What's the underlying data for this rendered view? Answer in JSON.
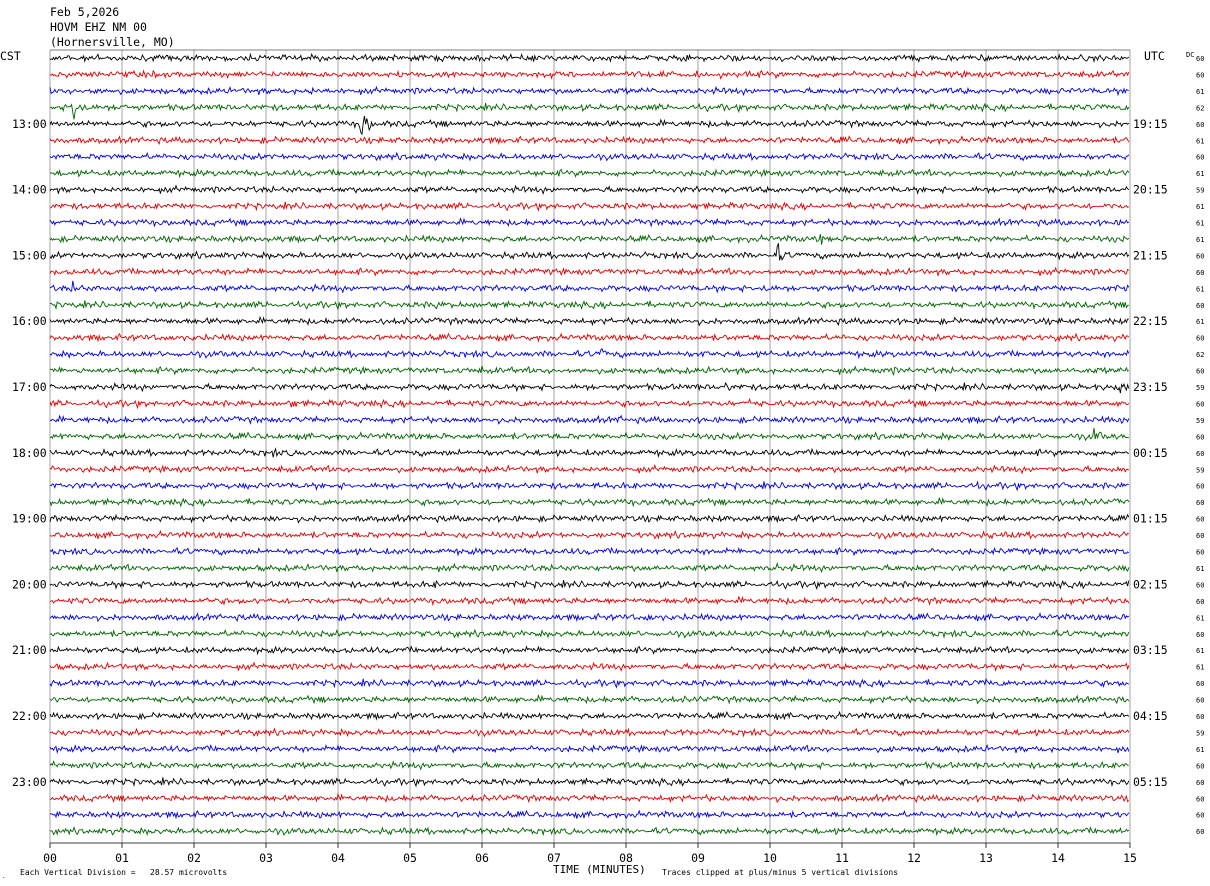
{
  "header": {
    "date": "Feb 5,2026",
    "station": "HOVM EHZ NM 00",
    "location": "(Hornersville, MO)"
  },
  "axis_labels": {
    "left_timezone": "CST",
    "right_timezone": "UTC",
    "dc_header": "DC",
    "x_title": "TIME (MINUTES)"
  },
  "footer": {
    "scale_note": "Each Vertical Division =   28.57 microvolts",
    "clip_note": "Traces clipped at plus/minus 5 vertical divisions"
  },
  "chart_data": {
    "type": "line",
    "x_range_minutes": [
      0,
      15
    ],
    "x_ticks": [
      "00",
      "01",
      "02",
      "03",
      "04",
      "05",
      "06",
      "07",
      "08",
      "09",
      "10",
      "11",
      "12",
      "13",
      "14",
      "15"
    ],
    "grid": "vertical lines every minute",
    "trace_colors": [
      "#000000",
      "#e00000",
      "#0000e0",
      "#006400"
    ],
    "left_hour_labels": [
      "13:00",
      "14:00",
      "15:00",
      "16:00",
      "17:00",
      "18:00",
      "19:00",
      "20:00",
      "21:00",
      "22:00",
      "23:00"
    ],
    "right_hour_labels": [
      "19:15",
      "20:15",
      "21:15",
      "22:15",
      "23:15",
      "00:15",
      "01:15",
      "02:15",
      "03:15",
      "04:15",
      "05:15"
    ],
    "first_hour_label_row": 4,
    "dc_values": [
      "60",
      "60",
      "61",
      "62",
      "60",
      "61",
      "60",
      "61",
      "59",
      "61",
      "61",
      "61",
      "60",
      "60",
      "61",
      "60",
      "61",
      "60",
      "62",
      "60",
      "59",
      "60",
      "59",
      "60",
      "60",
      "59",
      "60",
      "60",
      "60",
      "60",
      "60",
      "61",
      "60",
      "60",
      "61",
      "60",
      "61",
      "61",
      "60",
      "60",
      "60",
      "59",
      "61",
      "60",
      "60",
      "60",
      "60",
      "60"
    ],
    "row_count": 48,
    "base_amplitude_divisions": 0.9,
    "events": [
      {
        "row": 2,
        "minute": 0.6,
        "amp": 2.5
      },
      {
        "row": 2,
        "minute": 3.6,
        "amp": 2.0
      },
      {
        "row": 1,
        "minute": 10.9,
        "amp": 1.2
      },
      {
        "row": 3,
        "minute": 0.33,
        "amp": 7.0
      },
      {
        "row": 3,
        "minute": 1.0,
        "amp": 2.5
      },
      {
        "row": 4,
        "minute": 4.33,
        "amp": 5.0
      },
      {
        "row": 11,
        "minute": 10.7,
        "amp": 2.0
      },
      {
        "row": 12,
        "minute": 10.1,
        "amp": 3.5
      },
      {
        "row": 14,
        "minute": 0.33,
        "amp": 3.0
      },
      {
        "row": 14,
        "minute": 9.9,
        "amp": 2.5
      },
      {
        "row": 15,
        "minute": 5.3,
        "amp": 2.5
      },
      {
        "row": 15,
        "minute": 5.85,
        "amp": 1.5
      },
      {
        "row": 18,
        "minute": 7.65,
        "amp": 2.5
      },
      {
        "row": 18,
        "minute": 9.05,
        "amp": 1.8
      },
      {
        "row": 19,
        "minute": 6.0,
        "amp": 1.5
      },
      {
        "row": 19,
        "minute": 11.7,
        "amp": 1.5
      },
      {
        "row": 20,
        "minute": 3.6,
        "amp": 1.5
      },
      {
        "row": 20,
        "minute": 9.4,
        "amp": 2.0
      },
      {
        "row": 20,
        "minute": 11.8,
        "amp": 2.0
      },
      {
        "row": 20,
        "minute": 14.85,
        "amp": 3.0
      },
      {
        "row": 21,
        "minute": 3.35,
        "amp": 2.0
      },
      {
        "row": 21,
        "minute": 9.7,
        "amp": 1.8
      },
      {
        "row": 22,
        "minute": 7.9,
        "amp": 1.6
      },
      {
        "row": 23,
        "minute": 14.5,
        "amp": 3.0
      },
      {
        "row": 24,
        "minute": 3.1,
        "amp": 1.6
      },
      {
        "row": 24,
        "minute": 9.6,
        "amp": 1.4
      },
      {
        "row": 26,
        "minute": 12.9,
        "amp": 1.6
      },
      {
        "row": 27,
        "minute": 8.4,
        "amp": 1.2
      },
      {
        "row": 30,
        "minute": 2.4,
        "amp": 1.2
      },
      {
        "row": 31,
        "minute": 10.1,
        "amp": 1.8
      },
      {
        "row": 32,
        "minute": 1.35,
        "amp": 2.2
      },
      {
        "row": 32,
        "minute": 5.35,
        "amp": 1.5
      },
      {
        "row": 34,
        "minute": 8.3,
        "amp": 1.8
      },
      {
        "row": 37,
        "minute": 7.05,
        "amp": 1.4
      },
      {
        "row": 38,
        "minute": 13.0,
        "amp": 2.0
      },
      {
        "row": 39,
        "minute": 6.6,
        "amp": 1.0
      },
      {
        "row": 43,
        "minute": 14.9,
        "amp": 1.2
      }
    ]
  }
}
